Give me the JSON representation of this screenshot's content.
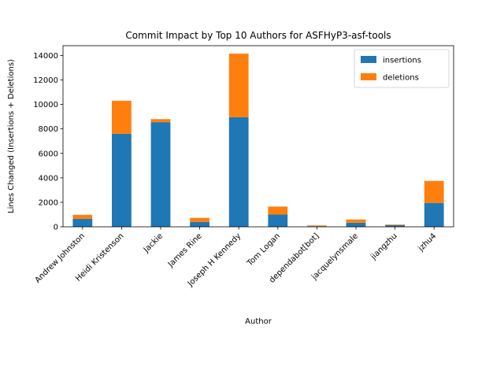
{
  "chart_data": {
    "type": "bar",
    "stacked": true,
    "title": "Commit Impact by Top 10 Authors for ASFHyP3-asf-tools",
    "xlabel": "Author",
    "ylabel": "Lines Changed (Insertions + Deletions)",
    "categories": [
      "Andrew Johnston",
      "Heidi Kristenson",
      "Jackie",
      "James Rine",
      "Joseph H Kennedy",
      "Tom Logan",
      "dependabot[bot]",
      "jacquelynsmale",
      "jiangzhu",
      "jzhu4"
    ],
    "series": [
      {
        "name": "insertions",
        "color": "#1f77b4",
        "values": [
          650,
          7600,
          8550,
          400,
          8950,
          1000,
          50,
          330,
          130,
          1950
        ]
      },
      {
        "name": "deletions",
        "color": "#ff7f0e",
        "values": [
          330,
          2700,
          250,
          330,
          5200,
          650,
          60,
          270,
          50,
          1800
        ]
      }
    ],
    "ylim": [
      0,
      14800
    ],
    "yticks": [
      0,
      2000,
      4000,
      6000,
      8000,
      10000,
      12000,
      14000
    ],
    "legend": "top-right",
    "grid": false
  }
}
